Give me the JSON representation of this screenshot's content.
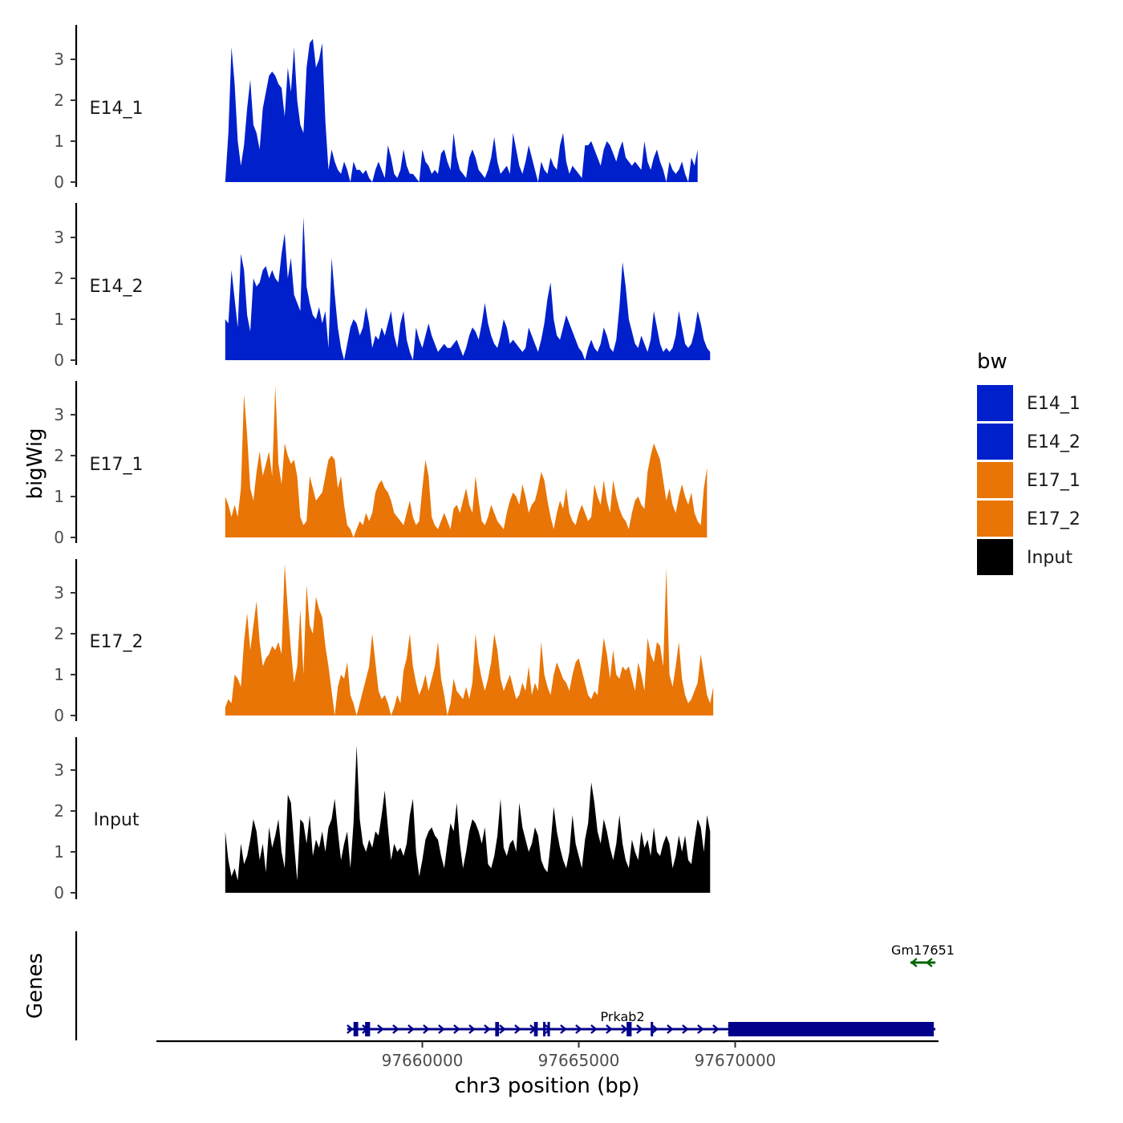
{
  "chart_data": {
    "type": "area",
    "y_axis_title": "bigWig",
    "genes_axis_title": "Genes",
    "x_axis_title": "chr3 position (bp)",
    "x_range": [
      97651500,
      97676500
    ],
    "x_ticks": [
      97660000,
      97665000,
      97670000
    ],
    "x_tick_labels": [
      "97660000",
      "97665000",
      "97670000"
    ],
    "y_range": [
      0,
      3.8
    ],
    "y_ticks": [
      0,
      1,
      2,
      3
    ],
    "y_tick_labels": [
      "0",
      "1",
      "2",
      "3"
    ],
    "data_start": 97653700,
    "step_bp": 100,
    "legend": {
      "title": "bw",
      "entries": [
        {
          "label": "E14_1",
          "color": "#0020CC"
        },
        {
          "label": "E14_2",
          "color": "#0020CC"
        },
        {
          "label": "E17_1",
          "color": "#E87506"
        },
        {
          "label": "E17_2",
          "color": "#E87506"
        },
        {
          "label": "Input",
          "color": "#000000"
        }
      ]
    },
    "tracks": [
      {
        "name": "E14_1",
        "color": "#0020CC",
        "values": [
          0.0,
          1.2,
          3.3,
          2.4,
          1.0,
          0.4,
          0.9,
          1.8,
          2.5,
          1.4,
          1.2,
          0.8,
          1.8,
          2.2,
          2.6,
          2.7,
          2.6,
          2.4,
          2.3,
          1.6,
          2.8,
          2.2,
          3.3,
          2.0,
          1.4,
          1.2,
          2.8,
          3.4,
          3.5,
          2.8,
          3.0,
          3.4,
          1.5,
          0.3,
          0.8,
          0.5,
          0.3,
          0.2,
          0.5,
          0.3,
          0.0,
          0.5,
          0.3,
          0.3,
          0.2,
          0.3,
          0.1,
          0.0,
          0.3,
          0.5,
          0.3,
          0.1,
          0.9,
          0.6,
          0.2,
          0.1,
          0.3,
          0.8,
          0.4,
          0.2,
          0.2,
          0.1,
          0.0,
          0.8,
          0.5,
          0.4,
          0.2,
          0.3,
          0.2,
          0.7,
          0.8,
          0.5,
          0.3,
          1.2,
          0.6,
          0.3,
          0.2,
          0.1,
          0.6,
          0.8,
          0.6,
          0.3,
          0.2,
          0.1,
          0.3,
          0.6,
          1.1,
          0.5,
          0.2,
          0.3,
          0.4,
          0.2,
          1.2,
          0.8,
          0.4,
          0.2,
          0.5,
          0.9,
          0.6,
          0.3,
          0.0,
          0.5,
          0.3,
          0.2,
          0.6,
          0.4,
          0.3,
          0.9,
          1.2,
          0.5,
          0.2,
          0.4,
          0.3,
          0.2,
          0.1,
          0.9,
          0.9,
          1.0,
          0.8,
          0.6,
          0.4,
          0.8,
          1.0,
          0.9,
          0.7,
          0.5,
          0.8,
          1.0,
          0.6,
          0.5,
          0.4,
          0.5,
          0.4,
          0.3,
          1.0,
          0.5,
          0.3,
          0.6,
          0.8,
          0.5,
          0.3,
          0.0,
          0.5,
          0.3,
          0.2,
          0.3,
          0.5,
          0.2,
          0.0,
          0.6,
          0.4,
          0.8
        ]
      },
      {
        "name": "E14_2",
        "color": "#0020CC",
        "values": [
          1.0,
          0.9,
          2.2,
          1.5,
          0.8,
          2.6,
          2.2,
          1.1,
          0.7,
          2.0,
          1.8,
          1.9,
          2.2,
          2.3,
          2.0,
          2.2,
          2.0,
          1.9,
          2.6,
          3.1,
          2.0,
          2.5,
          1.6,
          1.4,
          1.2,
          3.5,
          1.8,
          1.4,
          1.1,
          1.0,
          1.3,
          0.9,
          1.2,
          0.3,
          2.5,
          1.6,
          0.8,
          0.3,
          0.0,
          0.4,
          0.8,
          1.0,
          0.9,
          0.6,
          0.8,
          1.3,
          0.9,
          0.3,
          0.6,
          0.5,
          0.8,
          0.6,
          0.9,
          1.2,
          0.6,
          0.3,
          0.9,
          1.2,
          0.5,
          0.2,
          0.0,
          0.8,
          0.5,
          0.3,
          0.6,
          0.9,
          0.6,
          0.4,
          0.2,
          0.3,
          0.4,
          0.3,
          0.3,
          0.4,
          0.5,
          0.3,
          0.1,
          0.3,
          0.6,
          0.8,
          0.7,
          0.5,
          0.9,
          1.4,
          0.9,
          0.6,
          0.4,
          0.3,
          0.6,
          1.0,
          0.8,
          0.4,
          0.5,
          0.4,
          0.3,
          0.2,
          0.3,
          0.8,
          0.6,
          0.4,
          0.2,
          0.5,
          0.9,
          1.5,
          1.9,
          1.0,
          0.6,
          0.5,
          0.8,
          1.1,
          0.9,
          0.7,
          0.5,
          0.3,
          0.2,
          0.0,
          0.3,
          0.5,
          0.3,
          0.2,
          0.4,
          0.8,
          0.6,
          0.3,
          0.2,
          0.5,
          1.3,
          2.4,
          1.8,
          1.0,
          0.7,
          0.4,
          0.3,
          0.6,
          0.4,
          0.2,
          0.5,
          1.2,
          0.8,
          0.4,
          0.2,
          0.3,
          0.2,
          0.3,
          0.6,
          1.2,
          0.8,
          0.4,
          0.3,
          0.4,
          0.7,
          1.2,
          0.9,
          0.5,
          0.3,
          0.2
        ]
      },
      {
        "name": "E17_1",
        "color": "#E87506",
        "values": [
          1.0,
          0.8,
          0.5,
          0.8,
          0.5,
          1.2,
          3.5,
          2.5,
          1.2,
          0.9,
          1.6,
          2.1,
          1.5,
          1.8,
          2.1,
          1.5,
          3.7,
          1.8,
          1.3,
          2.3,
          2.0,
          1.8,
          1.9,
          1.5,
          0.5,
          0.3,
          0.4,
          1.5,
          1.2,
          0.9,
          1.0,
          1.1,
          1.5,
          1.9,
          2.0,
          1.9,
          1.2,
          1.5,
          0.8,
          0.3,
          0.2,
          0.0,
          0.2,
          0.4,
          0.3,
          0.6,
          0.4,
          0.6,
          1.1,
          1.3,
          1.4,
          1.2,
          1.1,
          0.9,
          0.6,
          0.5,
          0.4,
          0.3,
          0.6,
          0.9,
          0.5,
          0.3,
          0.4,
          1.2,
          1.9,
          1.5,
          0.5,
          0.3,
          0.2,
          0.4,
          0.6,
          0.4,
          0.2,
          0.7,
          0.8,
          0.6,
          0.9,
          1.2,
          0.8,
          0.6,
          1.5,
          0.9,
          0.4,
          0.3,
          0.5,
          0.8,
          0.6,
          0.4,
          0.3,
          0.2,
          0.6,
          0.9,
          1.1,
          1.0,
          0.8,
          1.3,
          1.0,
          0.6,
          0.8,
          0.9,
          1.2,
          1.6,
          1.4,
          0.9,
          0.5,
          0.2,
          0.6,
          0.9,
          0.7,
          1.2,
          0.6,
          0.4,
          0.3,
          0.6,
          0.8,
          0.6,
          0.4,
          0.5,
          1.3,
          1.0,
          0.8,
          1.4,
          0.9,
          0.6,
          1.4,
          1.0,
          0.7,
          0.5,
          0.4,
          0.2,
          0.6,
          0.9,
          1.0,
          0.8,
          0.7,
          1.6,
          2.0,
          2.3,
          2.1,
          1.9,
          1.4,
          0.9,
          1.2,
          0.8,
          0.6,
          1.0,
          1.3,
          1.0,
          0.8,
          1.1,
          0.6,
          0.4,
          0.3,
          1.2,
          1.7
        ]
      },
      {
        "name": "E17_2",
        "color": "#E87506",
        "values": [
          0.2,
          0.4,
          0.3,
          1.0,
          0.9,
          0.7,
          1.8,
          2.5,
          1.6,
          2.2,
          2.8,
          1.8,
          1.2,
          1.4,
          1.5,
          1.7,
          1.6,
          1.8,
          1.5,
          3.7,
          2.6,
          1.6,
          0.8,
          1.2,
          2.6,
          1.0,
          3.2,
          2.2,
          2.0,
          2.9,
          2.6,
          2.4,
          1.7,
          1.2,
          0.6,
          0.0,
          0.7,
          1.0,
          0.9,
          1.3,
          0.5,
          0.3,
          0.0,
          0.3,
          0.6,
          0.9,
          1.2,
          2.0,
          1.3,
          0.6,
          0.4,
          0.5,
          0.3,
          0.0,
          0.2,
          0.5,
          0.3,
          1.1,
          1.4,
          2.0,
          1.2,
          0.8,
          0.5,
          0.7,
          1.0,
          0.6,
          0.9,
          1.2,
          1.8,
          0.9,
          0.5,
          0.0,
          0.3,
          0.9,
          0.6,
          0.5,
          0.4,
          0.7,
          0.4,
          0.8,
          2.0,
          1.3,
          0.9,
          0.6,
          0.9,
          1.3,
          2.0,
          1.6,
          0.9,
          0.6,
          0.8,
          1.0,
          0.7,
          0.4,
          0.5,
          0.8,
          0.6,
          1.2,
          0.5,
          0.8,
          0.6,
          1.8,
          1.0,
          0.7,
          0.5,
          1.0,
          1.3,
          1.1,
          0.9,
          0.8,
          0.6,
          1.0,
          1.3,
          1.4,
          1.1,
          0.8,
          0.5,
          0.4,
          0.6,
          0.5,
          1.2,
          1.9,
          1.5,
          0.9,
          1.6,
          1.0,
          0.9,
          1.2,
          1.1,
          1.2,
          0.9,
          0.6,
          1.3,
          1.0,
          0.6,
          1.9,
          1.5,
          1.3,
          1.8,
          1.7,
          1.2,
          3.6,
          1.0,
          0.7,
          1.2,
          1.8,
          0.9,
          0.5,
          0.3,
          0.4,
          0.6,
          0.8,
          1.5,
          1.0,
          0.5,
          0.3,
          0.7
        ]
      },
      {
        "name": "Input",
        "color": "#000000",
        "values": [
          1.5,
          0.8,
          0.4,
          0.6,
          0.3,
          1.2,
          0.7,
          0.9,
          1.3,
          1.8,
          1.5,
          0.8,
          1.2,
          0.5,
          1.6,
          1.1,
          1.4,
          1.8,
          1.0,
          0.6,
          2.4,
          2.2,
          1.2,
          0.3,
          1.8,
          1.7,
          1.2,
          1.9,
          0.9,
          1.3,
          1.1,
          1.5,
          1.0,
          1.6,
          1.8,
          2.3,
          1.5,
          0.8,
          1.2,
          1.5,
          0.6,
          1.7,
          3.6,
          1.8,
          1.2,
          1.0,
          1.3,
          1.1,
          1.5,
          1.4,
          1.9,
          2.5,
          1.6,
          0.8,
          1.2,
          1.0,
          1.1,
          0.9,
          1.2,
          1.9,
          2.3,
          1.0,
          0.4,
          0.8,
          1.3,
          1.5,
          1.6,
          1.4,
          1.3,
          0.9,
          0.6,
          1.2,
          1.7,
          1.5,
          2.2,
          1.2,
          0.6,
          1.0,
          1.5,
          1.8,
          1.7,
          1.5,
          1.2,
          1.6,
          0.7,
          0.6,
          0.9,
          1.4,
          2.3,
          1.1,
          0.9,
          1.2,
          1.3,
          1.0,
          2.2,
          1.6,
          1.3,
          1.0,
          1.2,
          1.6,
          1.4,
          0.8,
          0.6,
          0.5,
          1.2,
          2.1,
          1.5,
          1.1,
          0.8,
          0.6,
          1.0,
          1.9,
          1.2,
          0.9,
          0.6,
          1.3,
          1.7,
          2.7,
          2.2,
          1.5,
          1.2,
          1.8,
          1.5,
          1.1,
          0.8,
          1.2,
          1.9,
          1.2,
          0.8,
          0.6,
          1.3,
          1.0,
          0.8,
          1.5,
          1.1,
          1.3,
          0.9,
          1.6,
          1.0,
          0.9,
          1.2,
          1.4,
          1.2,
          0.6,
          0.9,
          1.4,
          1.0,
          1.4,
          0.8,
          0.7,
          1.3,
          1.8,
          1.6,
          1.0,
          1.9,
          1.5
        ]
      }
    ],
    "genes": [
      {
        "name": "Prkab2",
        "color": "#00008B",
        "strand": "+",
        "start": 97657600,
        "end": 97676400,
        "exons": [
          [
            97657800,
            97657950
          ],
          [
            97658170,
            97658330
          ],
          [
            97662330,
            97662450
          ],
          [
            97663570,
            97663690
          ],
          [
            97663860,
            97663920
          ],
          [
            97664000,
            97664080
          ],
          [
            97666530,
            97666690
          ],
          [
            97667300,
            97667360
          ],
          [
            97669780,
            97676350
          ]
        ]
      },
      {
        "name": "Gm17651",
        "color": "#006400",
        "strand": "-",
        "start": 97675600,
        "end": 97676400,
        "exons": []
      }
    ]
  }
}
